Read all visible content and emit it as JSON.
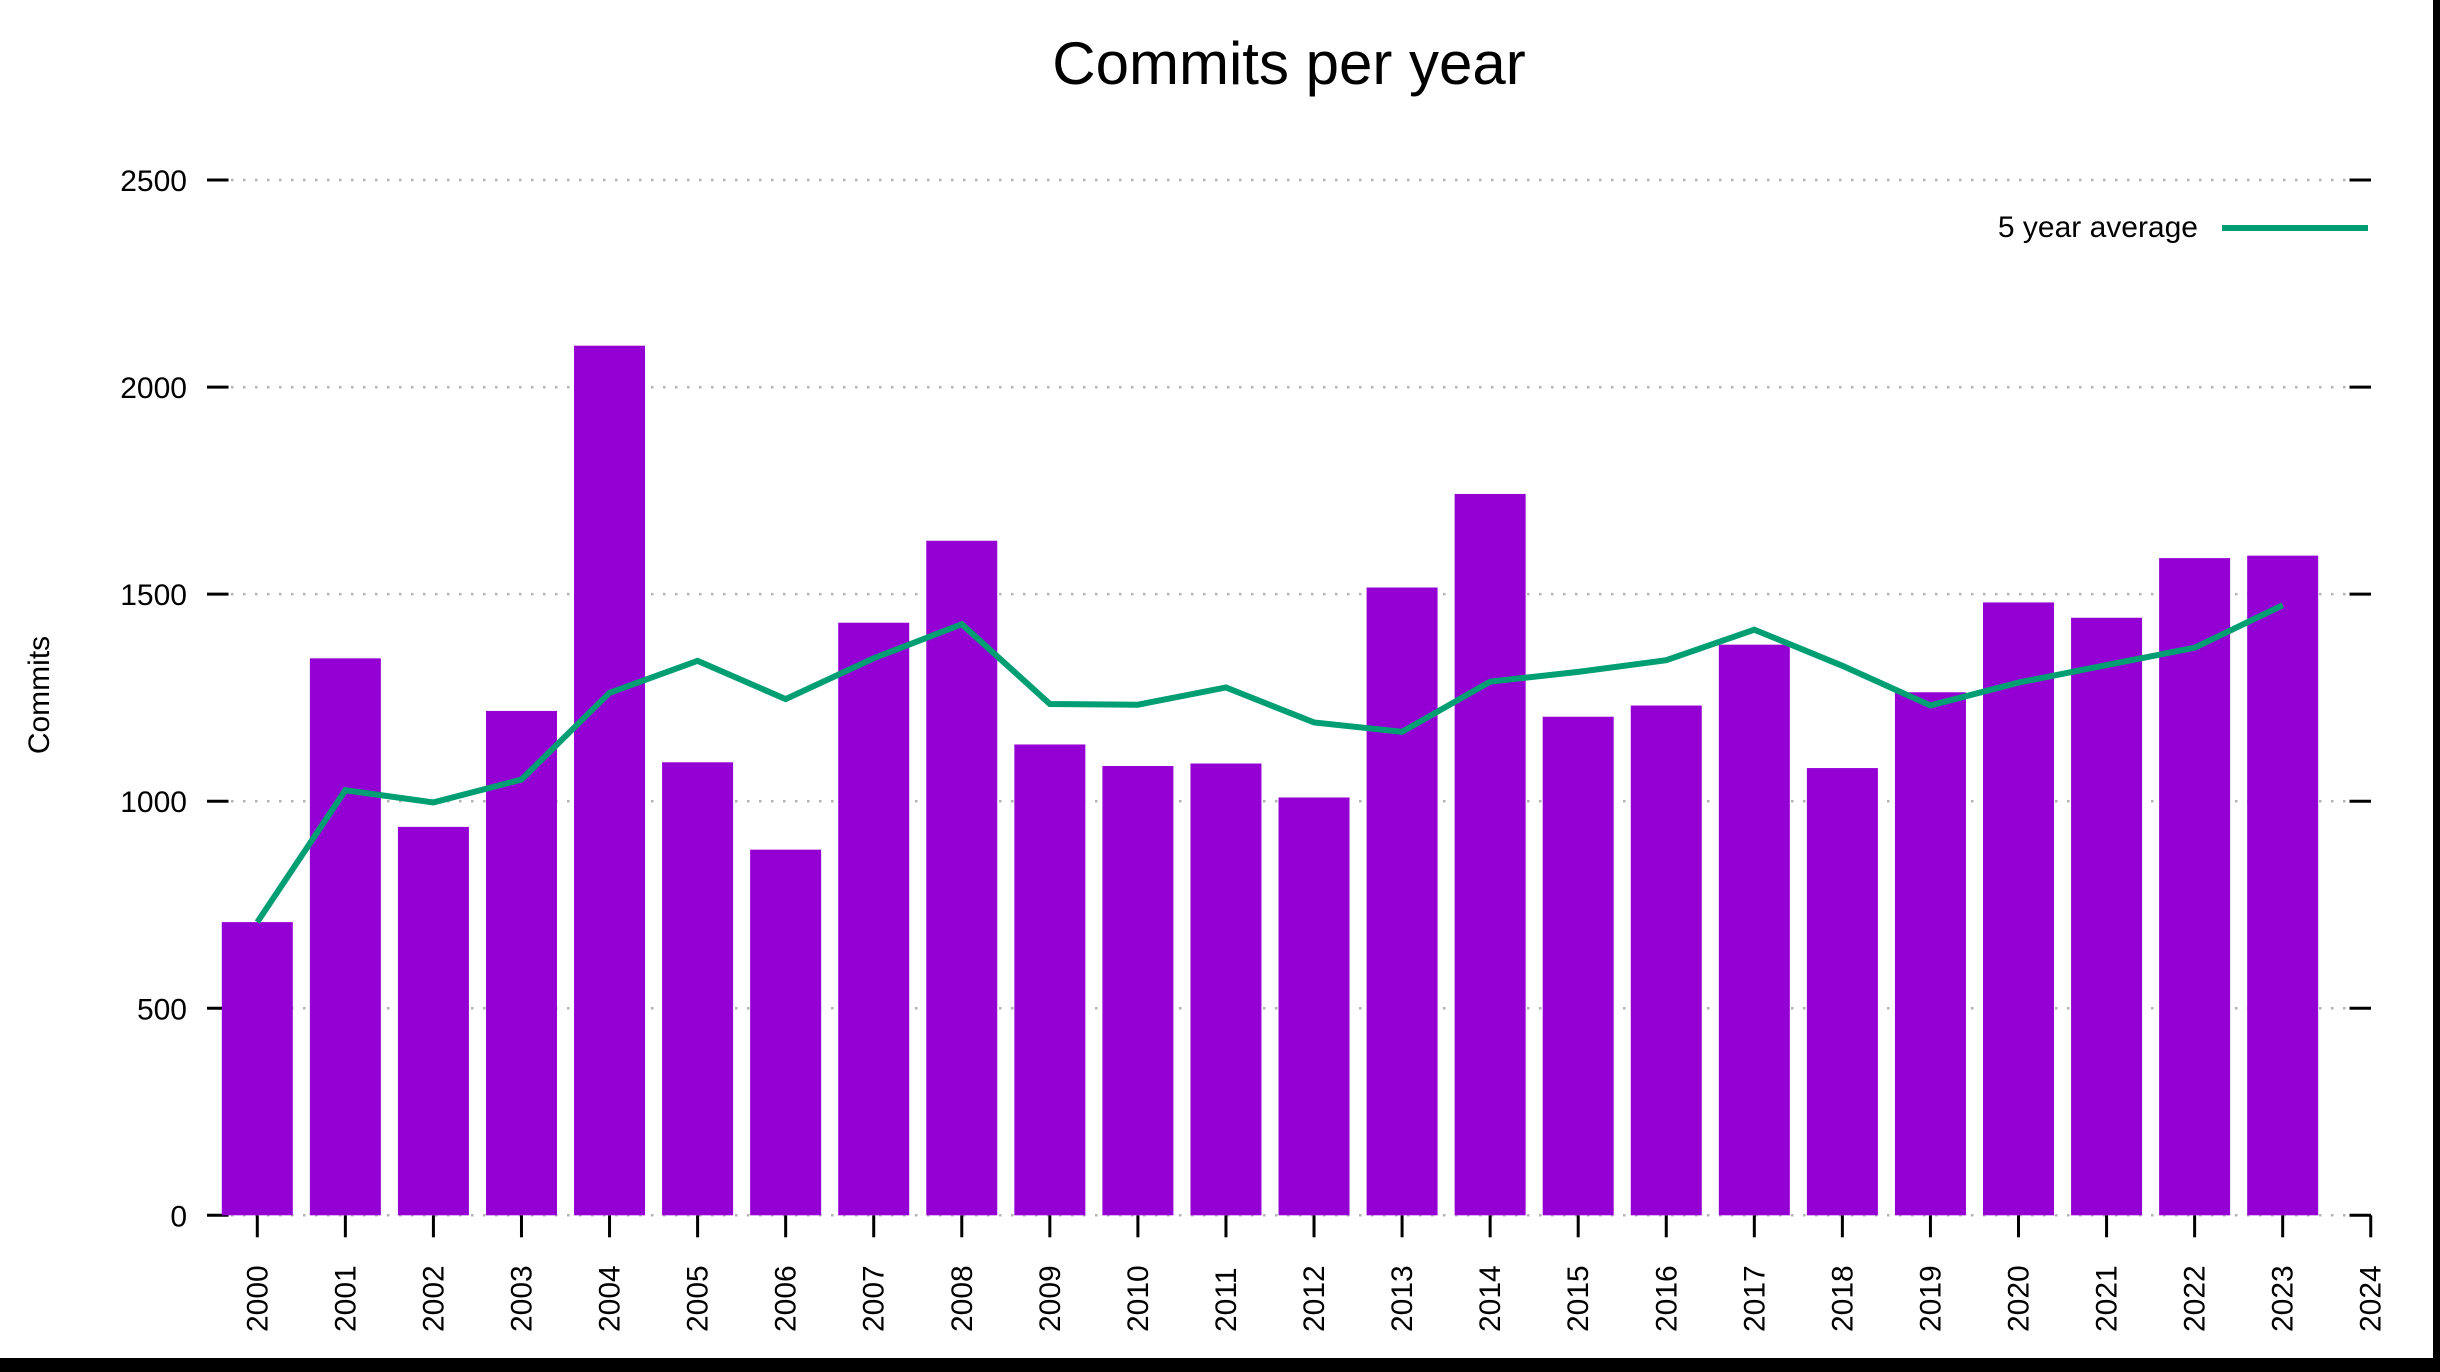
{
  "title": "Commits per year",
  "ylabel": "Commits",
  "legend": {
    "label": "5 year average"
  },
  "colors": {
    "bar": "#9400d3",
    "line": "#009e73",
    "grid": "#b3b3b3",
    "axis": "#000000",
    "window_border": "#000000",
    "background": "#ffffff"
  },
  "chart_data": {
    "type": "bar",
    "title": "Commits per year",
    "xlabel": "",
    "ylabel": "Commits",
    "ylim": [
      0,
      2500
    ],
    "grid": "horizontal-dotted",
    "legend_position": "top-right",
    "y_ticks": [
      0,
      500,
      1000,
      1500,
      2000,
      2500
    ],
    "x_ticks": [
      2000,
      2001,
      2002,
      2003,
      2004,
      2005,
      2006,
      2007,
      2008,
      2009,
      2010,
      2011,
      2012,
      2013,
      2014,
      2015,
      2016,
      2017,
      2018,
      2019,
      2020,
      2021,
      2022,
      2023,
      2024
    ],
    "categories": [
      2000,
      2001,
      2002,
      2003,
      2004,
      2005,
      2006,
      2007,
      2008,
      2009,
      2010,
      2011,
      2012,
      2013,
      2014,
      2015,
      2016,
      2017,
      2018,
      2019,
      2020,
      2021,
      2022,
      2023
    ],
    "series": [
      {
        "name": "Commits",
        "type": "bar",
        "color": "#9400d3",
        "values": [
          708,
          1345,
          938,
          1218,
          2100,
          1094,
          883,
          1431,
          1629,
          1137,
          1085,
          1091,
          1009,
          1516,
          1742,
          1204,
          1231,
          1378,
          1080,
          1263,
          1480,
          1443,
          1587,
          1593
        ]
      },
      {
        "name": "5 year average",
        "type": "line",
        "color": "#009e73",
        "values": [
          708,
          1026.5,
          997.0,
          1052.3,
          1261.8,
          1339.0,
          1246.6,
          1345.2,
          1427.4,
          1234.8,
          1233.0,
          1274.6,
          1190.2,
          1167.6,
          1288.6,
          1312.4,
          1340.4,
          1414.2,
          1327.0,
          1231.2,
          1286.4,
          1328.8,
          1370.6,
          1473.2
        ]
      }
    ]
  }
}
